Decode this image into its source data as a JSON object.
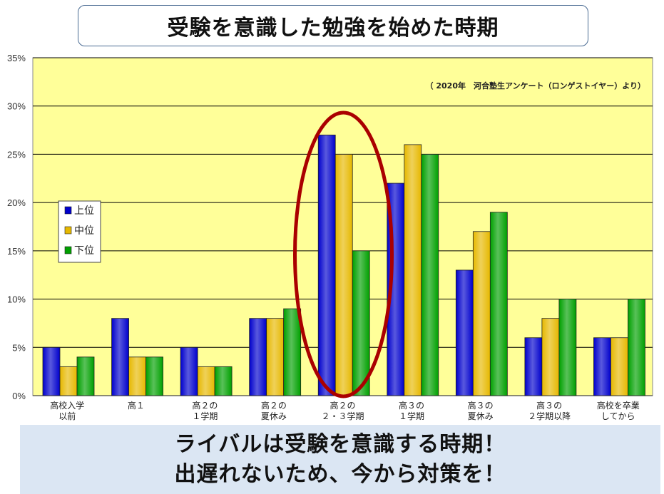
{
  "title": "受験を意識した勉強を始めた時期",
  "footer": {
    "line1": "ライバルは受験を意識する時期！",
    "line2": "出遅れないため、今から対策を！"
  },
  "colors": {
    "plot_background": "#ffff99",
    "series": [
      "#0000cc",
      "#e6b800",
      "#00a000"
    ],
    "highlight": "#aa0000"
  },
  "chart_data": {
    "type": "bar",
    "annotation": "（ 2020年　河合塾生アンケート（ロンゲストイヤー）より）",
    "categories": [
      [
        "高校入学",
        "以前"
      ],
      [
        "高１"
      ],
      [
        "高２の",
        "１学期"
      ],
      [
        "高２の",
        "夏休み"
      ],
      [
        "高２の",
        "２・３学期"
      ],
      [
        "高３の",
        "１学期"
      ],
      [
        "高３の",
        "夏休み"
      ],
      [
        "高３の",
        "２学期以降"
      ],
      [
        "高校を卒業",
        "してから"
      ]
    ],
    "series": [
      {
        "name": "上位",
        "values": [
          5,
          8,
          5,
          8,
          27,
          22,
          13,
          6,
          6
        ]
      },
      {
        "name": "中位",
        "values": [
          3,
          4,
          3,
          8,
          25,
          26,
          17,
          8,
          6
        ]
      },
      {
        "name": "下位",
        "values": [
          4,
          4,
          3,
          9,
          15,
          25,
          19,
          10,
          10
        ]
      }
    ],
    "y_ticks": [
      "0%",
      "5%",
      "10%",
      "15%",
      "20%",
      "25%",
      "30%",
      "35%"
    ],
    "ylim": [
      0,
      35
    ],
    "y_unit": "%",
    "grid": true,
    "legend_position": "left",
    "highlighted_category": 4
  }
}
